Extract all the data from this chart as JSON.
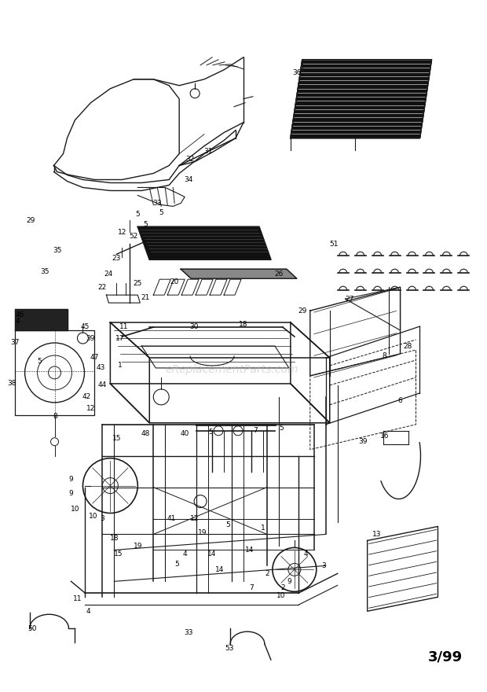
{
  "background_color": "#ffffff",
  "watermark_text": "eReplacementParts.com",
  "watermark_color": "#bbbbbb",
  "date_text": "3/99",
  "fig_width": 6.2,
  "fig_height": 8.8,
  "dpi": 100,
  "label_fontsize": 6.5,
  "label_color": "#000000",
  "lc": "#1a1a1a",
  "lw": 0.9
}
